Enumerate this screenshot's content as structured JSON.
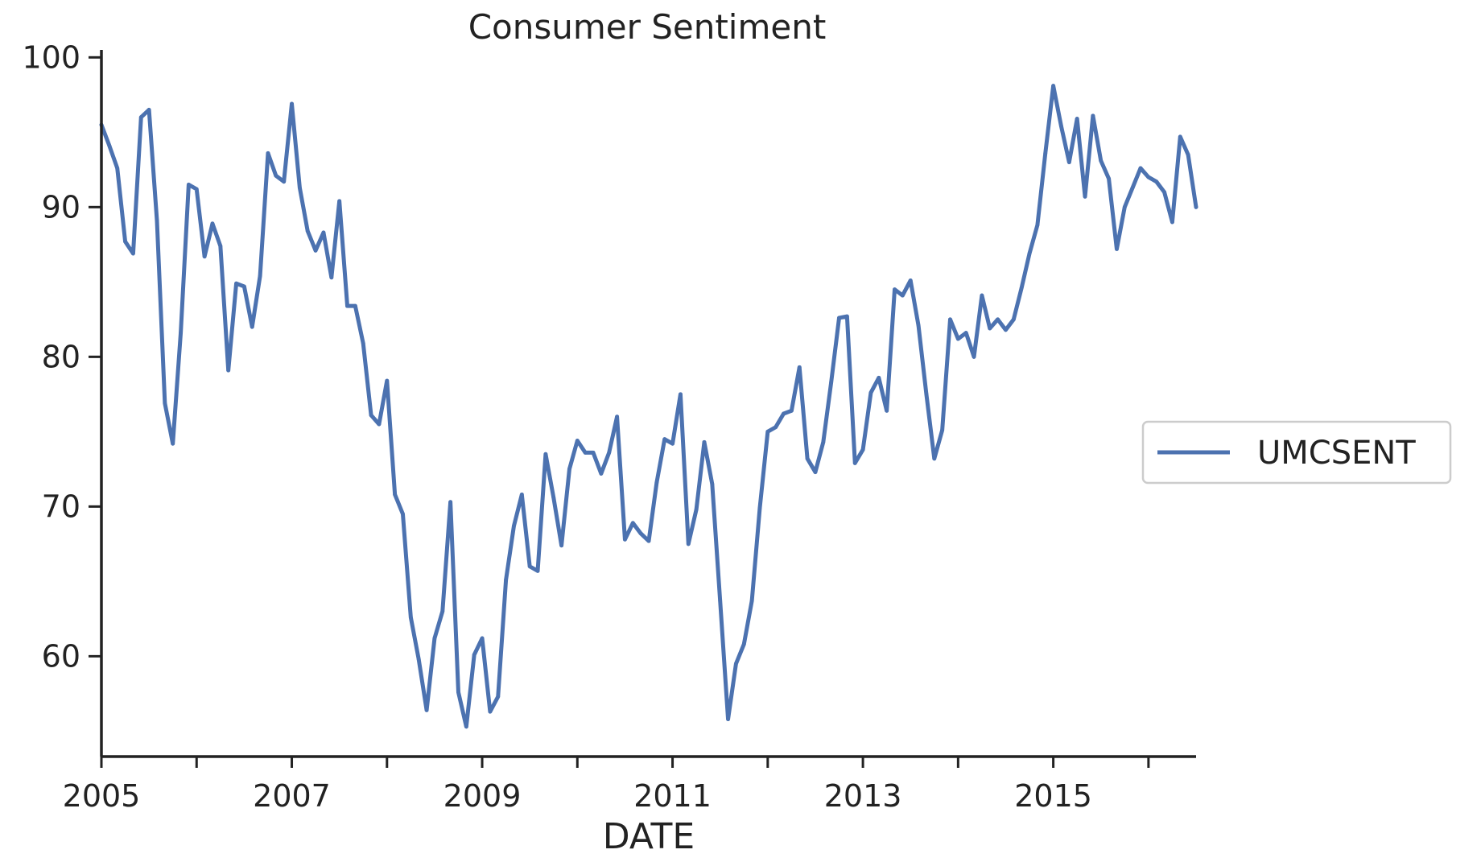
{
  "chart_data": {
    "type": "line",
    "title": "Consumer Sentiment",
    "xlabel": "DATE",
    "ylabel": "",
    "xlim": [
      2005.0,
      2016.5
    ],
    "ylim": [
      53.3,
      100.5
    ],
    "x_ticks": [
      2005,
      2007,
      2009,
      2011,
      2013,
      2015
    ],
    "x_tick_labels": [
      "2005",
      "2007",
      "2009",
      "2011",
      "2013",
      "2015"
    ],
    "x_minor_ticks": [
      2006,
      2008,
      2010,
      2012,
      2014,
      2016
    ],
    "y_ticks": [
      60,
      70,
      80,
      90,
      100
    ],
    "y_tick_labels": [
      "60",
      "70",
      "80",
      "90",
      "100"
    ],
    "grid": false,
    "legend_position": "right",
    "series": [
      {
        "name": "UMCSENT",
        "color": "#4c72b0",
        "start_year": 2005,
        "step": "monthly",
        "values": [
          95.5,
          94.1,
          92.6,
          87.7,
          86.9,
          96.0,
          96.5,
          89.1,
          76.9,
          74.2,
          81.6,
          91.5,
          91.2,
          86.7,
          88.9,
          87.4,
          79.1,
          84.9,
          84.7,
          82.0,
          85.4,
          93.6,
          92.1,
          91.7,
          96.9,
          91.3,
          88.4,
          87.1,
          88.3,
          85.3,
          90.4,
          83.4,
          83.4,
          80.9,
          76.1,
          75.5,
          78.4,
          70.8,
          69.5,
          62.6,
          59.8,
          56.4,
          61.2,
          63.0,
          70.3,
          57.6,
          55.3,
          60.1,
          61.2,
          56.3,
          57.3,
          65.1,
          68.7,
          70.8,
          66.0,
          65.7,
          73.5,
          70.6,
          67.4,
          72.5,
          74.4,
          73.6,
          73.6,
          72.2,
          73.6,
          76.0,
          67.8,
          68.9,
          68.2,
          67.7,
          71.6,
          74.5,
          74.2,
          77.5,
          67.5,
          69.8,
          74.3,
          71.5,
          63.7,
          55.8,
          59.5,
          60.8,
          63.7,
          69.9,
          75.0,
          75.3,
          76.2,
          76.4,
          79.3,
          73.2,
          72.3,
          74.3,
          78.3,
          82.6,
          82.7,
          72.9,
          73.8,
          77.6,
          78.6,
          76.4,
          84.5,
          84.1,
          85.1,
          82.1,
          77.5,
          73.2,
          75.1,
          82.5,
          81.2,
          81.6,
          80.0,
          84.1,
          81.9,
          82.5,
          81.8,
          82.5,
          84.6,
          86.9,
          88.8,
          93.6,
          98.1,
          95.4,
          93.0,
          95.9,
          90.7,
          96.1,
          93.1,
          91.9,
          87.2,
          90.0,
          91.3,
          92.6,
          92.0,
          91.7,
          91.0,
          89.0,
          94.7,
          93.5,
          90.0
        ]
      }
    ]
  }
}
